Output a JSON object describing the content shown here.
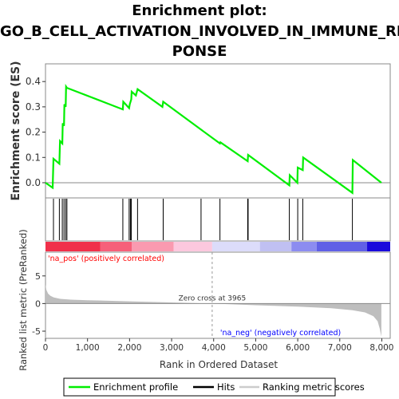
{
  "title_lines": [
    "Enrichment plot:",
    "GO_B_CELL_ACTIVATION_INVOLVED_IN_IMMUNE_RES",
    "PONSE"
  ],
  "colors": {
    "enrichment": "#00ee00",
    "hits": "#000000",
    "metric_fill": "#bebebe",
    "zero_line": "#888888",
    "pos_text": "#ff0000",
    "neg_text": "#0000ff"
  },
  "chart_data": [
    {
      "type": "line",
      "panel": "enrichment",
      "ylabel": "Enrichment score (ES)",
      "xlim": [
        0,
        8200
      ],
      "ylim": [
        -0.06,
        0.47
      ],
      "yticks": [
        "0.0",
        "0.1",
        "0.2",
        "0.3",
        "0.4"
      ],
      "ytick_values": [
        0.0,
        0.1,
        0.2,
        0.3,
        0.4
      ],
      "series": [
        {
          "name": "Enrichment profile",
          "x": [
            0,
            170,
            190,
            330,
            345,
            400,
            410,
            440,
            450,
            480,
            490,
            510,
            1840,
            1850,
            1990,
            2005,
            2040,
            2050,
            2150,
            2190,
            2780,
            2800,
            3700,
            4150,
            4160,
            4810,
            4820,
            5800,
            5810,
            5990,
            6000,
            6120,
            6130,
            7300,
            7310,
            7990
          ],
          "y": [
            0.0,
            -0.02,
            0.095,
            0.075,
            0.165,
            0.155,
            0.235,
            0.225,
            0.31,
            0.3,
            0.38,
            0.375,
            0.29,
            0.32,
            0.295,
            0.31,
            0.33,
            0.36,
            0.345,
            0.37,
            0.3,
            0.32,
            0.21,
            0.155,
            0.16,
            0.085,
            0.11,
            -0.01,
            0.03,
            0.0,
            0.06,
            0.05,
            0.1,
            -0.04,
            0.09,
            0.0
          ]
        }
      ]
    },
    {
      "type": "scatter",
      "panel": "hits",
      "name": "Hits",
      "x": [
        190,
        330,
        400,
        440,
        480,
        510,
        1840,
        1990,
        2020,
        2040,
        2190,
        2800,
        3700,
        4150,
        4810,
        4820,
        5800,
        6000,
        6120,
        7300
      ]
    },
    {
      "type": "area",
      "panel": "ranked_metric",
      "name": "Ranking metric scores",
      "ylabel": "Ranked list metric (PreRanked)",
      "xlabel": "Rank in Ordered Dataset",
      "xlim": [
        0,
        8200
      ],
      "ylim": [
        -6.3,
        9.3
      ],
      "xticks": [
        "0",
        "1,000",
        "2,000",
        "3,000",
        "4,000",
        "5,000",
        "6,000",
        "7,000",
        "8,000"
      ],
      "xtick_values": [
        0,
        1000,
        2000,
        3000,
        4000,
        5000,
        6000,
        7000,
        8000
      ],
      "yticks": [
        "-5",
        "0",
        "5"
      ],
      "ytick_values": [
        -5,
        0,
        5
      ],
      "x": [
        0,
        20,
        60,
        120,
        200,
        350,
        600,
        1000,
        2000,
        3000,
        3965,
        5000,
        6000,
        6800,
        7300,
        7600,
        7800,
        7900,
        7950,
        7990
      ],
      "y": [
        3.5,
        2.5,
        1.8,
        1.4,
        1.1,
        0.85,
        0.7,
        0.6,
        0.4,
        0.2,
        0.0,
        -0.3,
        -0.55,
        -0.85,
        -1.2,
        -1.6,
        -2.3,
        -3.2,
        -4.5,
        -6.0
      ],
      "zero_cross_label": "Zero cross at 3965",
      "zero_cross": 3965,
      "pos_label": "'na_pos' (positively correlated)",
      "neg_label": "'na_neg' (negatively correlated)"
    }
  ],
  "legend": {
    "items": [
      {
        "label": "Enrichment profile",
        "color": "#00ee00"
      },
      {
        "label": "Hits",
        "color": "#000000"
      },
      {
        "label": "Ranking metric scores",
        "color": "#cccccc"
      }
    ]
  }
}
